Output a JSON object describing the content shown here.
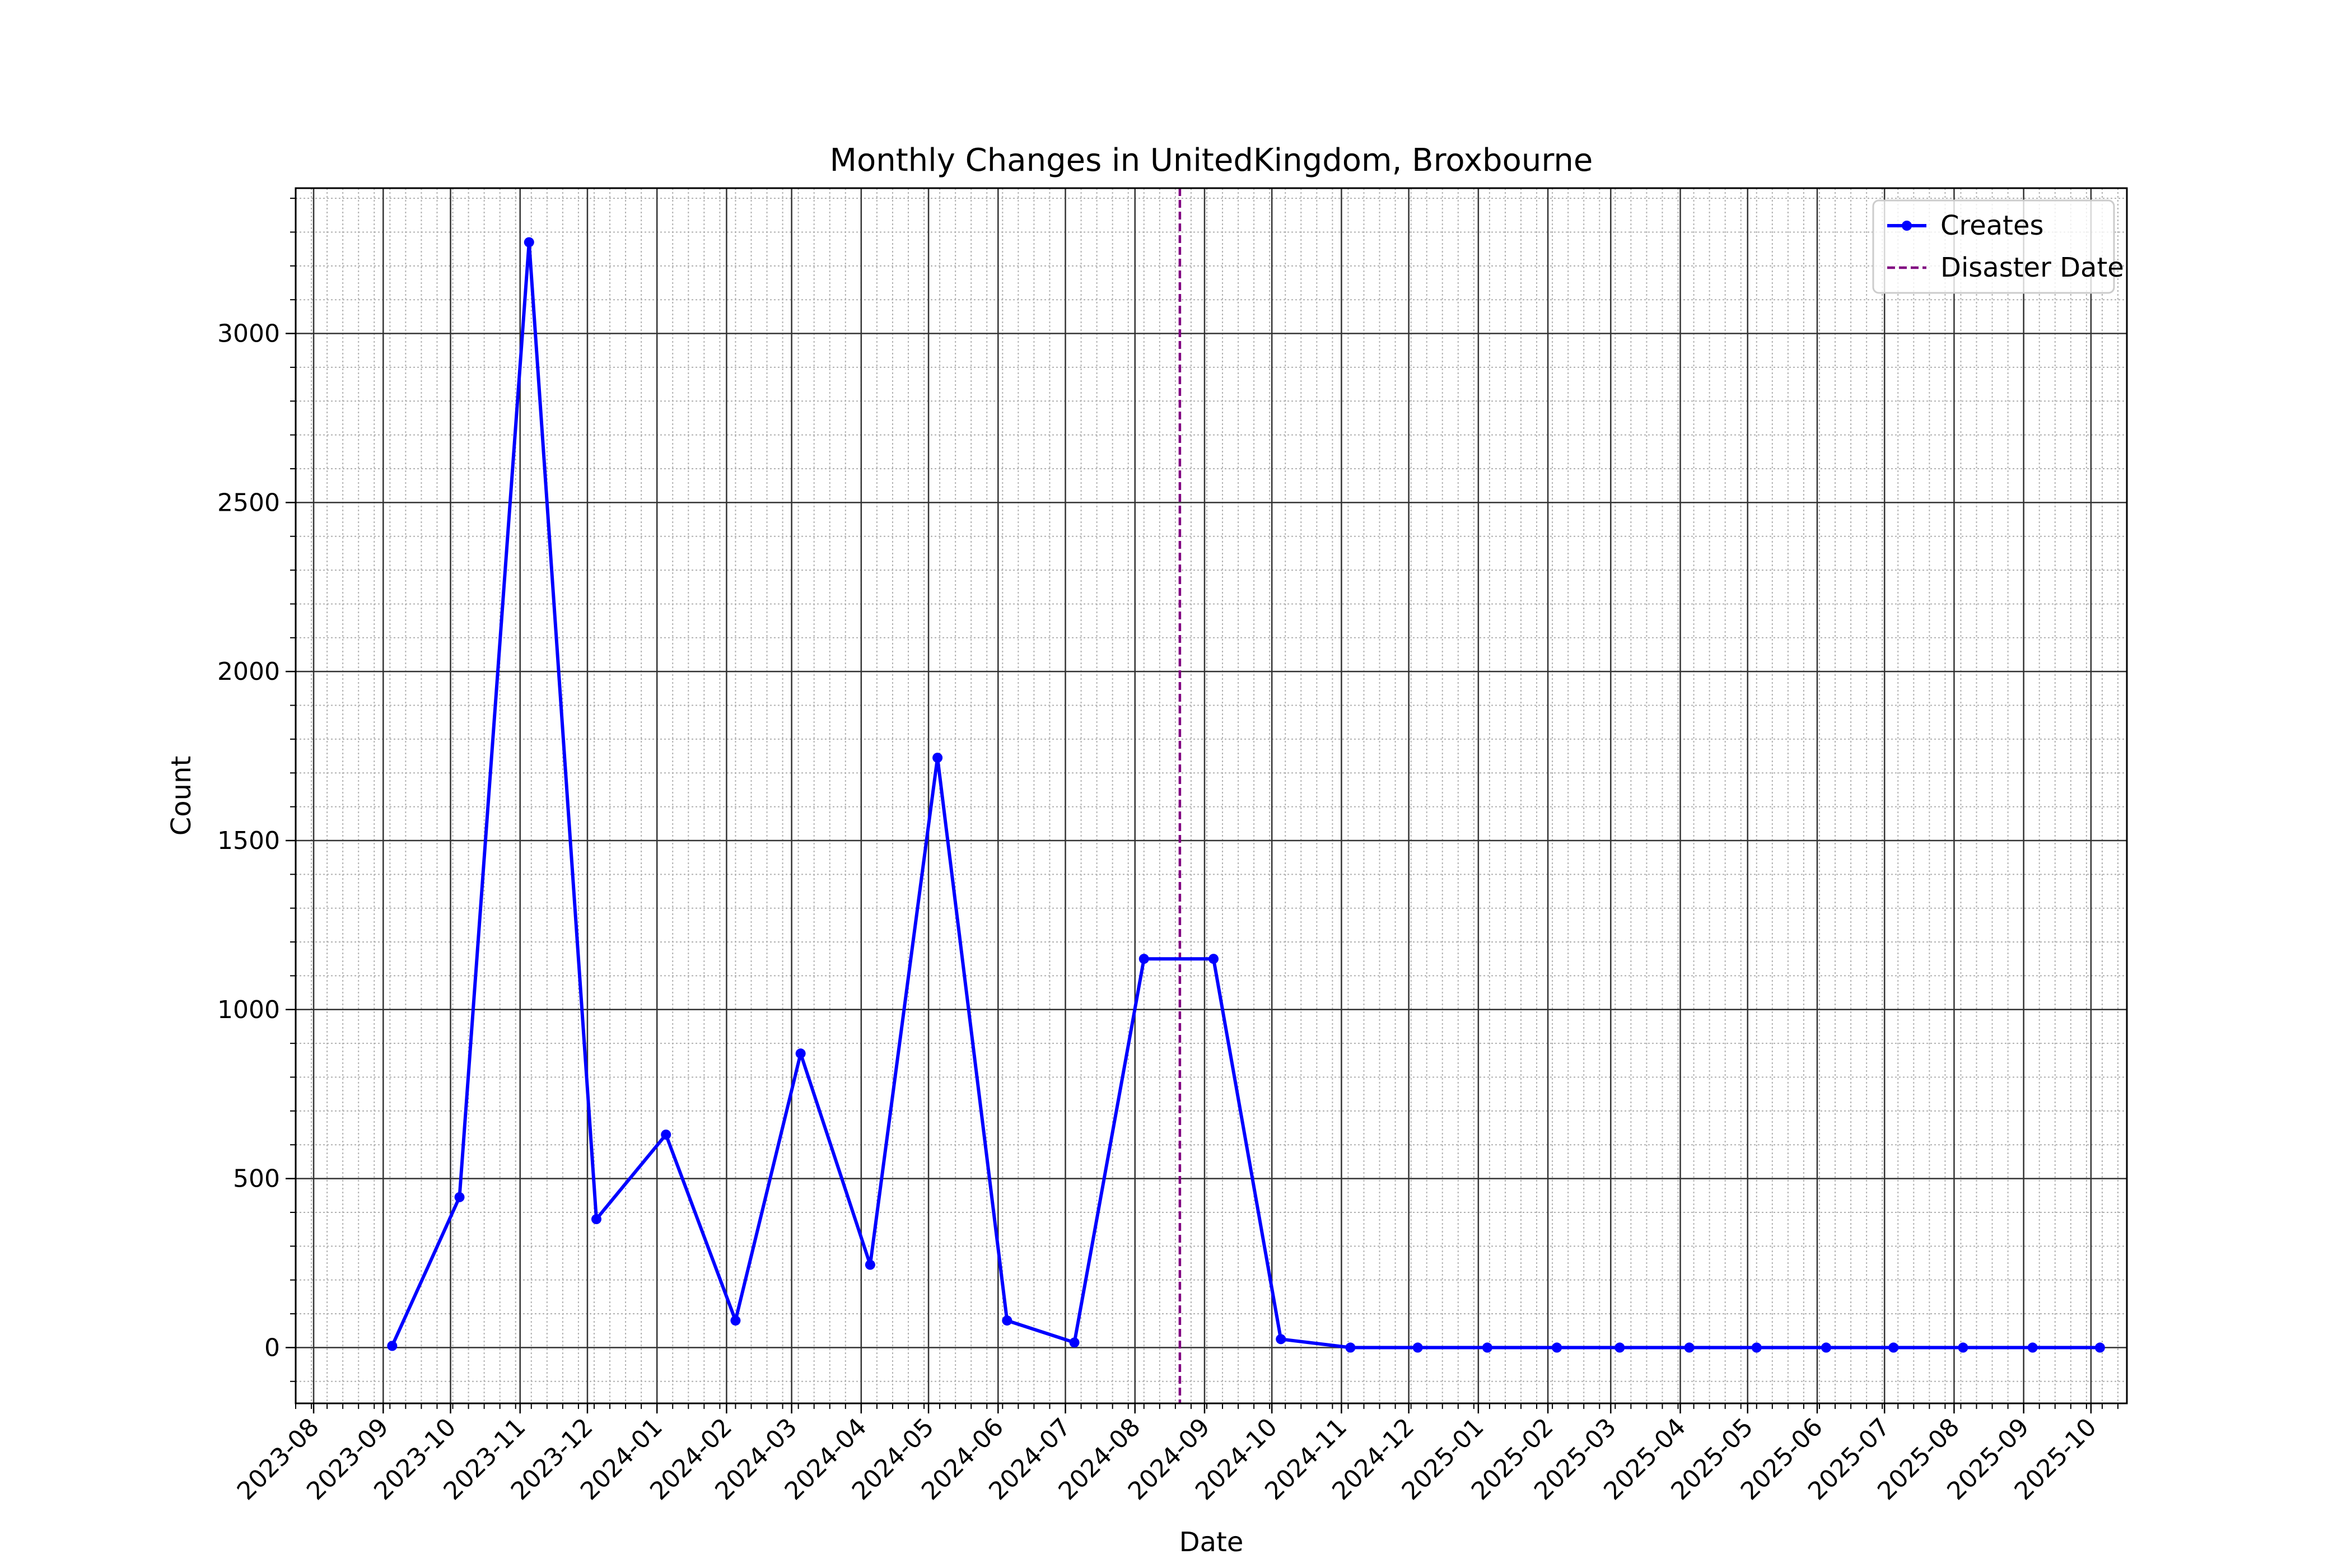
{
  "chart_data": {
    "type": "line",
    "title": "Monthly Changes in UnitedKingdom, Broxbourne",
    "xlabel": "Date",
    "ylabel": "Count",
    "xlim": [
      "2023-07-24",
      "2025-10-17"
    ],
    "ylim": [
      -165,
      3430
    ],
    "x_ticks": [
      "2023-08",
      "2023-09",
      "2023-10",
      "2023-11",
      "2023-12",
      "2024-01",
      "2024-02",
      "2024-03",
      "2024-04",
      "2024-05",
      "2024-06",
      "2024-07",
      "2024-08",
      "2024-09",
      "2024-10",
      "2024-11",
      "2024-12",
      "2025-01",
      "2025-02",
      "2025-03",
      "2025-04",
      "2025-05",
      "2025-06",
      "2025-07",
      "2025-08",
      "2025-09",
      "2025-10"
    ],
    "y_ticks": [
      0,
      500,
      1000,
      1500,
      2000,
      2500,
      3000
    ],
    "grid": true,
    "minor_grid": true,
    "legend_position": "top-right",
    "series": [
      {
        "name": "Creates",
        "color": "#0000ff",
        "marker": "circle",
        "x": [
          "2023-09-05",
          "2023-10-05",
          "2023-11-05",
          "2023-12-05",
          "2024-01-05",
          "2024-02-05",
          "2024-03-05",
          "2024-04-05",
          "2024-05-05",
          "2024-06-05",
          "2024-07-05",
          "2024-08-05",
          "2024-09-05",
          "2024-10-05",
          "2024-11-05",
          "2024-12-05",
          "2025-01-05",
          "2025-02-05",
          "2025-03-05",
          "2025-04-05",
          "2025-05-05",
          "2025-06-05",
          "2025-07-05",
          "2025-08-05",
          "2025-09-05",
          "2025-10-05"
        ],
        "values": [
          5,
          445,
          3270,
          380,
          630,
          80,
          870,
          245,
          1745,
          80,
          15,
          1150,
          1150,
          25,
          0,
          0,
          0,
          0,
          0,
          0,
          0,
          0,
          0,
          0,
          0,
          0
        ]
      }
    ],
    "annotations": [
      {
        "type": "vertical-line",
        "name": "Disaster Date",
        "x": "2024-08-21",
        "color": "#800080",
        "style": "dashed"
      }
    ]
  }
}
